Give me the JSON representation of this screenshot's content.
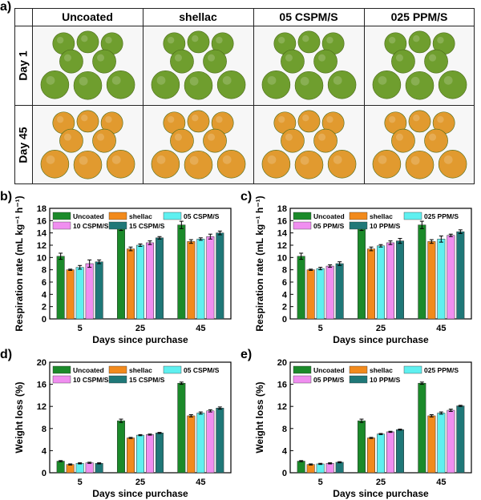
{
  "figure": {
    "panel_labels": [
      "a)",
      "b)",
      "c)",
      "d)",
      "e)"
    ],
    "photo_grid": {
      "columns": [
        "Uncoated",
        "shellac",
        "05 CSPM/S",
        "025 PPM/S"
      ],
      "rows": [
        "Day 1",
        "Day 45"
      ],
      "row_colors": [
        "#7ba83a",
        "#e8a23c"
      ]
    }
  },
  "colors": {
    "series": [
      "#1b8a2a",
      "#f28a1c",
      "#5ff0f0",
      "#f08ef0",
      "#1f7878"
    ],
    "fruit_green": "#6f9e2e",
    "fruit_orange": "#e19a2f"
  },
  "chart_data": [
    {
      "id": "b",
      "type": "bar",
      "ylabel": "Respiration rate (mL kg⁻¹ h⁻¹)",
      "xlabel": "Days since purchase",
      "categories": [
        "5",
        "25",
        "45"
      ],
      "ylim": [
        0,
        18
      ],
      "yticks": [
        0,
        2,
        4,
        6,
        8,
        10,
        12,
        14,
        16,
        18
      ],
      "series": [
        {
          "name": "Uncoated",
          "values": [
            10.2,
            14.7,
            15.3
          ],
          "errors": [
            0.5,
            0.3,
            0.6
          ]
        },
        {
          "name": "shellac",
          "values": [
            8.0,
            11.4,
            12.6
          ],
          "errors": [
            0.1,
            0.3,
            0.3
          ]
        },
        {
          "name": "05 CSPM/S",
          "values": [
            8.4,
            12.0,
            13.0
          ],
          "errors": [
            0.3,
            0.2,
            0.2
          ]
        },
        {
          "name": "10 CSPM/S",
          "values": [
            9.0,
            12.4,
            13.4
          ],
          "errors": [
            0.6,
            0.3,
            0.4
          ]
        },
        {
          "name": "15 CSPM/S",
          "values": [
            9.3,
            13.2,
            14.0
          ],
          "errors": [
            0.3,
            0.2,
            0.3
          ]
        }
      ]
    },
    {
      "id": "c",
      "type": "bar",
      "ylabel": "Respiration rate (mL kg⁻¹ h⁻¹)",
      "xlabel": "Days since purchase",
      "categories": [
        "5",
        "25",
        "45"
      ],
      "ylim": [
        0,
        18
      ],
      "yticks": [
        0,
        2,
        4,
        6,
        8,
        10,
        12,
        14,
        16,
        18
      ],
      "series": [
        {
          "name": "Uncoated",
          "values": [
            10.2,
            14.7,
            15.3
          ],
          "errors": [
            0.5,
            0.3,
            0.6
          ]
        },
        {
          "name": "shellac",
          "values": [
            8.0,
            11.4,
            12.6
          ],
          "errors": [
            0.1,
            0.3,
            0.3
          ]
        },
        {
          "name": "025 PPM/S",
          "values": [
            8.2,
            11.9,
            13.0
          ],
          "errors": [
            0.2,
            0.2,
            0.5
          ]
        },
        {
          "name": "05 PPM/S",
          "values": [
            8.6,
            12.4,
            13.6
          ],
          "errors": [
            0.2,
            0.3,
            0.2
          ]
        },
        {
          "name": "10 PPM/S",
          "values": [
            9.0,
            12.7,
            14.2
          ],
          "errors": [
            0.3,
            0.4,
            0.3
          ]
        }
      ]
    },
    {
      "id": "d",
      "type": "bar",
      "ylabel": "Weight loss (%)",
      "xlabel": "Days since purchase",
      "categories": [
        "5",
        "25",
        "45"
      ],
      "ylim": [
        0,
        20
      ],
      "yticks": [
        0,
        4,
        8,
        12,
        16,
        20
      ],
      "series": [
        {
          "name": "Uncoated",
          "values": [
            2.1,
            9.4,
            16.2
          ],
          "errors": [
            0.1,
            0.3,
            0.2
          ]
        },
        {
          "name": "shellac",
          "values": [
            1.5,
            6.3,
            10.3
          ],
          "errors": [
            0.1,
            0.1,
            0.2
          ]
        },
        {
          "name": "05 CSPM/S",
          "values": [
            1.7,
            6.8,
            10.8
          ],
          "errors": [
            0.1,
            0.1,
            0.2
          ]
        },
        {
          "name": "10 CSPM/S",
          "values": [
            1.8,
            6.9,
            11.2
          ],
          "errors": [
            0.1,
            0.1,
            0.2
          ]
        },
        {
          "name": "15 CSPM/S",
          "values": [
            1.7,
            7.2,
            11.7
          ],
          "errors": [
            0.1,
            0.1,
            0.2
          ]
        }
      ]
    },
    {
      "id": "e",
      "type": "bar",
      "ylabel": "Weight loss (%)",
      "xlabel": "Days since purchase",
      "categories": [
        "5",
        "25",
        "45"
      ],
      "ylim": [
        0,
        20
      ],
      "yticks": [
        0,
        4,
        8,
        12,
        16,
        20
      ],
      "series": [
        {
          "name": "Uncoated",
          "values": [
            2.1,
            9.4,
            16.2
          ],
          "errors": [
            0.1,
            0.3,
            0.2
          ]
        },
        {
          "name": "shellac",
          "values": [
            1.5,
            6.3,
            10.3
          ],
          "errors": [
            0.1,
            0.1,
            0.2
          ]
        },
        {
          "name": "025 PPM/S",
          "values": [
            1.6,
            7.0,
            10.8
          ],
          "errors": [
            0.1,
            0.1,
            0.2
          ]
        },
        {
          "name": "05 PPM/S",
          "values": [
            1.7,
            7.4,
            11.3
          ],
          "errors": [
            0.1,
            0.1,
            0.2
          ]
        },
        {
          "name": "10 PPM/S",
          "values": [
            1.9,
            7.8,
            12.1
          ],
          "errors": [
            0.1,
            0.1,
            0.1
          ]
        }
      ]
    }
  ]
}
